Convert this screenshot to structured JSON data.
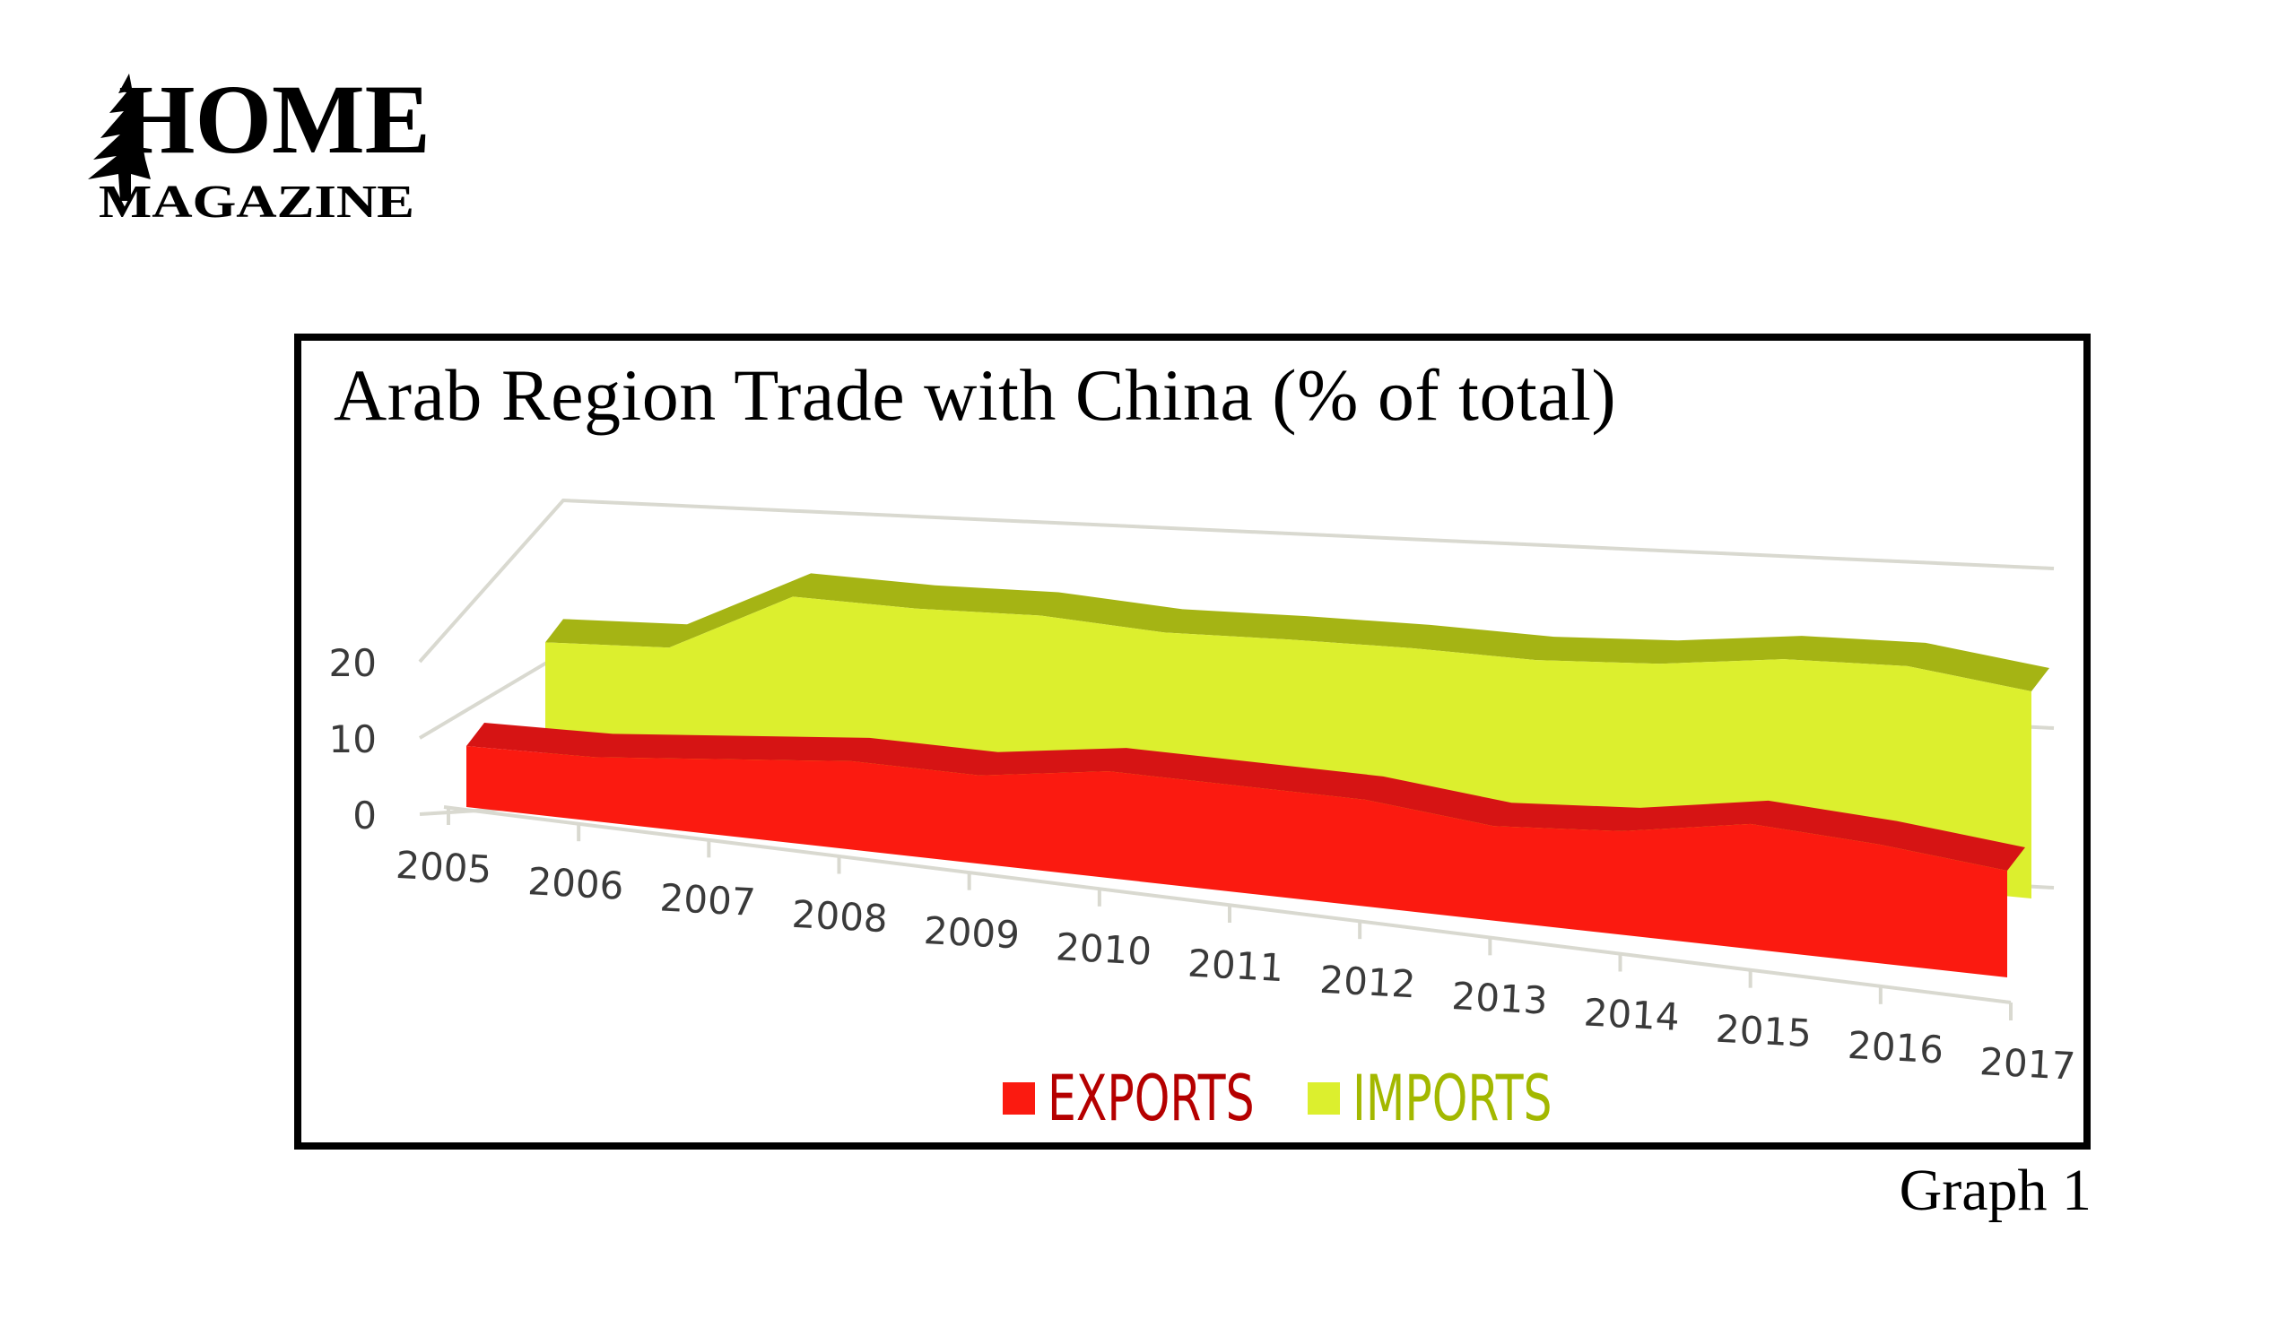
{
  "logo": {
    "title": "HOME",
    "subtitle": "MAGAZINE"
  },
  "caption": "Graph 1",
  "colors": {
    "exports_top": "#d61414",
    "exports_front": "#fb1a10",
    "imports_top": "#a5b414",
    "imports_front": "#dcef2e",
    "grid": "#d9d9d0",
    "exports_label": "#b50000",
    "imports_label": "#a3b800"
  },
  "chart_data": {
    "type": "area",
    "title": "Arab Region Trade with China (% of total)",
    "categories": [
      "2005",
      "2006",
      "2007",
      "2008",
      "2009",
      "2010",
      "2011",
      "2012",
      "2013",
      "2014",
      "2015",
      "2016",
      "2017"
    ],
    "yticks": [
      "0",
      "10",
      "20"
    ],
    "ylim": [
      0,
      20
    ],
    "xlabel": "",
    "ylabel": "",
    "grid": true,
    "legend_position": "bottom",
    "series": [
      {
        "name": "EXPORTS",
        "values": [
          4.0,
          4.2,
          5.0,
          5.8,
          5.8,
          7.0,
          7.0,
          7.0,
          6.2,
          6.8,
          8.2,
          7.8,
          7.0
        ]
      },
      {
        "name": "IMPORTS",
        "values": [
          6.8,
          7.2,
          11.0,
          11.0,
          11.3,
          11.0,
          11.3,
          11.5,
          11.5,
          12.0,
          13.0,
          13.3,
          12.5
        ]
      }
    ]
  }
}
